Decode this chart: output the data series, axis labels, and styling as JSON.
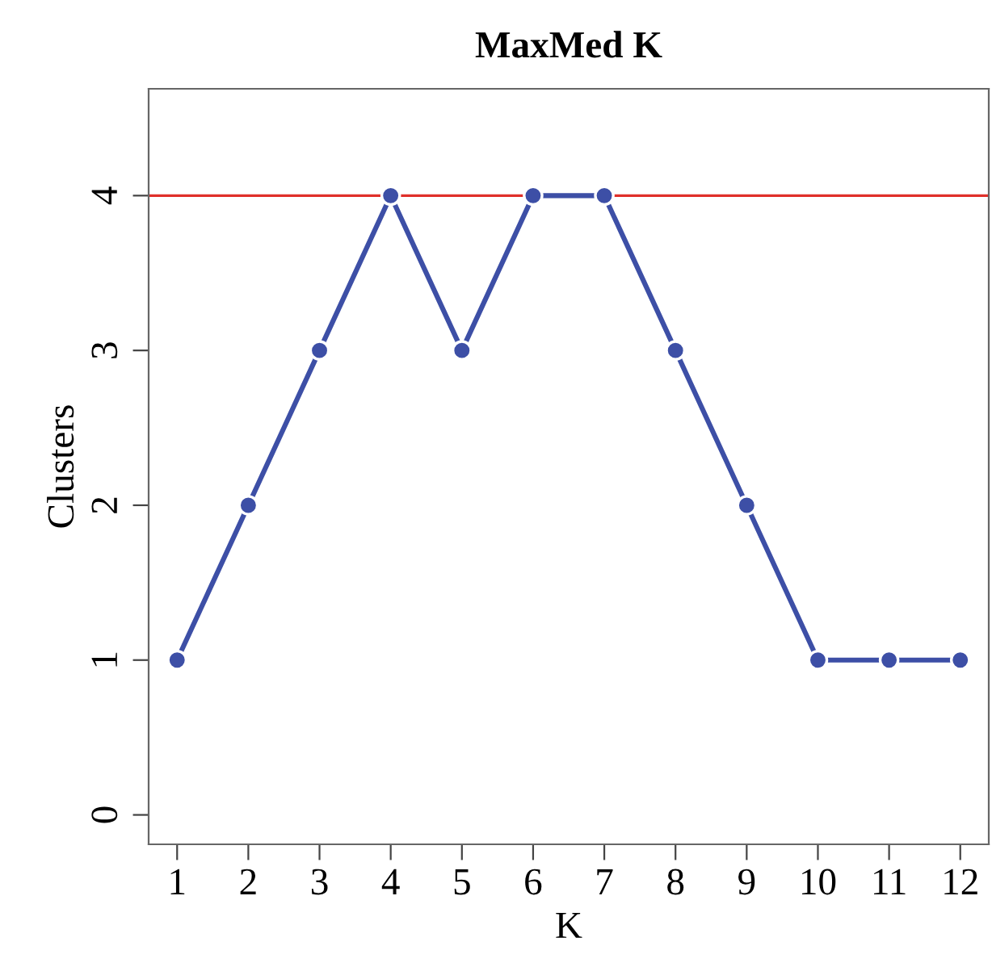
{
  "chart_data": {
    "type": "line",
    "title": "MaxMed K",
    "xlabel": "K",
    "ylabel": "Clusters",
    "x": [
      1,
      2,
      3,
      4,
      5,
      6,
      7,
      8,
      9,
      10,
      11,
      12
    ],
    "series": [
      {
        "color": "#3d4fa6",
        "values": [
          1,
          2,
          3,
          4,
          3,
          4,
          4,
          3,
          2,
          1,
          1,
          1
        ]
      }
    ],
    "marker": "circle",
    "line_style": "solid",
    "xlim": [
      0.6,
      12.4
    ],
    "ylim": [
      -0.19,
      4.69
    ],
    "xticks": [
      1,
      2,
      3,
      4,
      5,
      6,
      7,
      8,
      9,
      10,
      11,
      12
    ],
    "yticks": [
      0,
      1,
      2,
      3,
      4
    ],
    "ref_lines": [
      {
        "axis": "y",
        "value": 4,
        "color": "#e0302a"
      }
    ],
    "grid": false,
    "legend": false
  }
}
